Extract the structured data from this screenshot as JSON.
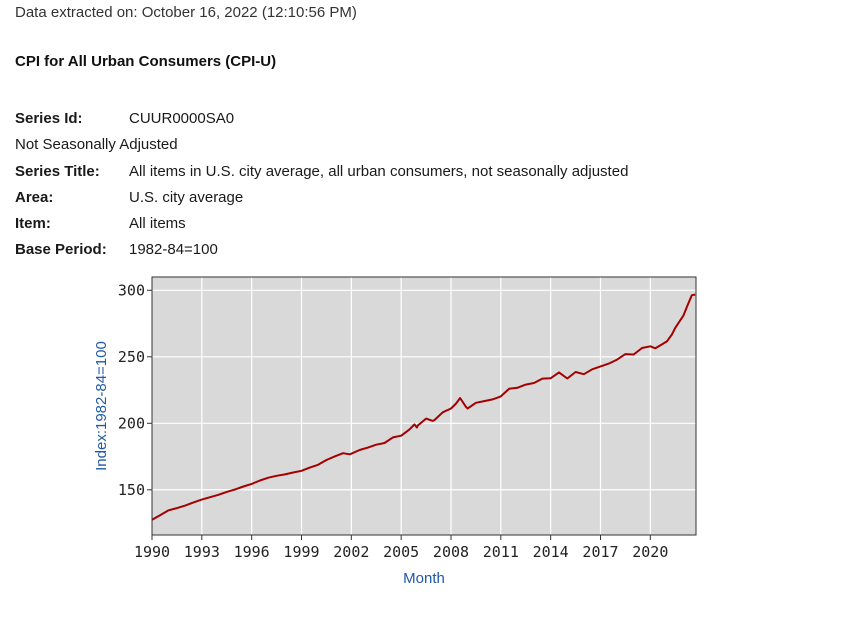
{
  "header": {
    "extracted": "Data extracted on: October 16, 2022 (12:10:56 PM)",
    "title": "CPI for All Urban Consumers (CPI-U)"
  },
  "series_info": {
    "series_id_label": "Series Id:",
    "series_id": "CUUR0000SA0",
    "adjustment": "Not Seasonally Adjusted",
    "series_title_label": "Series Title:",
    "series_title": "All items in U.S. city average, all urban consumers, not seasonally adjusted",
    "area_label": "Area:",
    "area": "U.S. city average",
    "item_label": "Item:",
    "item": "All items",
    "base_period_label": "Base Period:",
    "base_period": "1982-84=100"
  },
  "colors": {
    "plot_bg": "#d9d9d9",
    "line": "#a50000",
    "axis_title": "#1f5aa6",
    "grid": "#ffffff"
  },
  "chart_data": {
    "type": "line",
    "title": "",
    "xlabel": "Month",
    "ylabel": "Index:1982-84=100",
    "xlim": [
      1990,
      2022.75
    ],
    "ylim": [
      116,
      310
    ],
    "grid": true,
    "x_ticks": [
      "1990",
      "1993",
      "1996",
      "1999",
      "2002",
      "2005",
      "2008",
      "2011",
      "2014",
      "2017",
      "2020"
    ],
    "y_ticks": [
      150,
      200,
      250,
      300
    ],
    "series": [
      {
        "x": [
          1990.0,
          1990.5,
          1991.0,
          1991.5,
          1992.0,
          1992.5,
          1993.0,
          1993.5,
          1994.0,
          1994.5,
          1995.0,
          1995.5,
          1996.0,
          1996.5,
          1997.0,
          1997.5,
          1998.0,
          1998.5,
          1999.0,
          1999.5,
          2000.0,
          2000.5,
          2001.0,
          2001.5,
          2001.9,
          2002.0,
          2002.5,
          2003.0,
          2003.5,
          2004.0,
          2004.5,
          2005.0,
          2005.5,
          2005.8,
          2005.95,
          2006.0,
          2006.5,
          2006.9,
          2007.0,
          2007.5,
          2008.0,
          2008.3,
          2008.55,
          2008.9,
          2009.0,
          2009.5,
          2010.0,
          2010.5,
          2011.0,
          2011.5,
          2012.0,
          2012.5,
          2013.0,
          2013.5,
          2014.0,
          2014.5,
          2015.0,
          2015.5,
          2016.0,
          2016.5,
          2017.0,
          2017.5,
          2018.0,
          2018.5,
          2019.0,
          2019.5,
          2020.0,
          2020.3,
          2020.5,
          2021.0,
          2021.3,
          2021.5,
          2022.0,
          2022.2,
          2022.5,
          2022.7
        ],
        "values": [
          127.4,
          131.0,
          134.6,
          136.2,
          138.1,
          140.5,
          142.6,
          144.4,
          146.2,
          148.4,
          150.3,
          152.5,
          154.4,
          157.0,
          159.1,
          160.5,
          161.6,
          163.0,
          164.3,
          166.7,
          168.8,
          172.4,
          175.1,
          177.5,
          176.7,
          177.1,
          179.9,
          181.7,
          183.9,
          185.2,
          189.4,
          190.7,
          195.4,
          199.2,
          196.8,
          198.3,
          203.5,
          201.8,
          202.4,
          208.3,
          211.1,
          214.8,
          219.0,
          212.4,
          211.1,
          215.4,
          216.7,
          218.0,
          220.2,
          225.9,
          226.7,
          229.1,
          230.3,
          233.6,
          233.9,
          238.3,
          233.7,
          238.6,
          236.9,
          240.6,
          242.8,
          244.9,
          247.9,
          252.0,
          251.7,
          256.6,
          257.9,
          256.4,
          257.8,
          261.6,
          266.8,
          271.7,
          281.1,
          287.5,
          296.3,
          296.8
        ]
      }
    ]
  }
}
